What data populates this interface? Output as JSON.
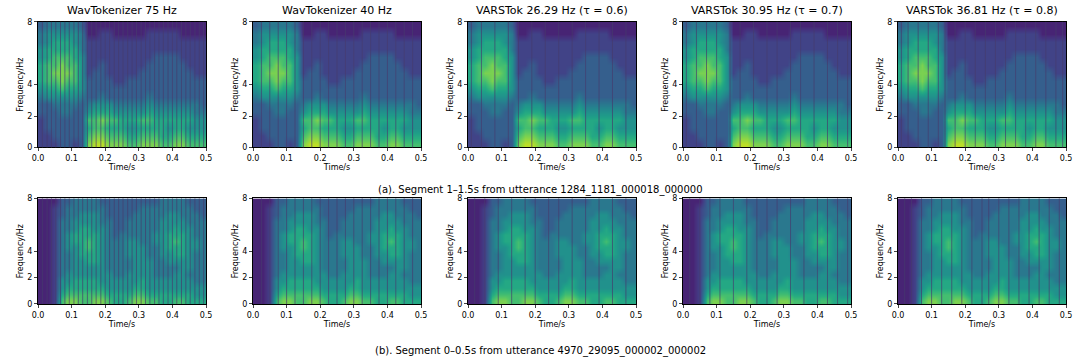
{
  "chart_data": {
    "type": "heatmap",
    "x_label": "Time/s",
    "y_label": "Frequency/Hz",
    "xlim": [
      0,
      0.5
    ],
    "ylim": [
      0,
      8
    ],
    "xticks": [
      {
        "value": 0,
        "label": "0.0"
      },
      0.1,
      0.2,
      0.3,
      0.4,
      0.5
    ],
    "yticks": [
      0,
      2,
      4,
      8
    ],
    "zlim": [
      0,
      10
    ],
    "columns": [
      "WavTokenizer 75 Hz",
      "WavTokenizer 40 Hz",
      "VARSTok 26.29 Hz (τ = 0.6)",
      "VARSTok 30.95 Hz (τ = 0.7)",
      "VARSTok 36.81 Hz (τ = 0.8)"
    ],
    "x": [
      0.01,
      0.03,
      0.05,
      0.07,
      0.09,
      0.11,
      0.13,
      0.15,
      0.17,
      0.19,
      0.21,
      0.23,
      0.25,
      0.27,
      0.29,
      0.31,
      0.33,
      0.35,
      0.37,
      0.39,
      0.41,
      0.43,
      0.45,
      0.47,
      0.49
    ],
    "y": [
      0.25,
      0.75,
      1.25,
      1.75,
      2.25,
      2.75,
      3.25,
      3.75,
      4.25,
      4.75,
      5.25,
      5.75,
      6.25,
      6.75,
      7.25,
      7.75
    ],
    "rows": [
      {
        "caption": "(a). Segment 1–1.5s from utterance 1284_1181_000018_000000",
        "z": [
          [
            2,
            2,
            2,
            3,
            3,
            2,
            3,
            8,
            9,
            9,
            8,
            8,
            8,
            7,
            7,
            8,
            8,
            8,
            7,
            7,
            8,
            8,
            7,
            7,
            7
          ],
          [
            2,
            2,
            3,
            3,
            3,
            3,
            3,
            7,
            8,
            8,
            7,
            7,
            7,
            6,
            6,
            7,
            7,
            7,
            6,
            6,
            7,
            7,
            6,
            6,
            6
          ],
          [
            2,
            3,
            3,
            3,
            3,
            3,
            3,
            6,
            7,
            7,
            6,
            6,
            6,
            5,
            5,
            6,
            6,
            6,
            6,
            5,
            6,
            6,
            5,
            5,
            5
          ],
          [
            2,
            3,
            3,
            3,
            3,
            3,
            3,
            7,
            7,
            8,
            7,
            7,
            6,
            6,
            6,
            7,
            7,
            6,
            6,
            6,
            6,
            6,
            6,
            5,
            5
          ],
          [
            3,
            3,
            3,
            4,
            4,
            3,
            3,
            5,
            6,
            6,
            6,
            5,
            5,
            5,
            5,
            5,
            6,
            5,
            5,
            5,
            5,
            5,
            5,
            4,
            4
          ],
          [
            3,
            3,
            4,
            4,
            4,
            4,
            3,
            4,
            5,
            5,
            5,
            4,
            4,
            4,
            4,
            4,
            5,
            4,
            4,
            4,
            4,
            4,
            4,
            4,
            3
          ],
          [
            4,
            5,
            5,
            5,
            5,
            5,
            4,
            3,
            3,
            4,
            3,
            3,
            3,
            3,
            3,
            3,
            4,
            3,
            3,
            3,
            3,
            3,
            3,
            3,
            3
          ],
          [
            5,
            6,
            6,
            7,
            6,
            6,
            5,
            3,
            3,
            3,
            3,
            3,
            3,
            3,
            3,
            3,
            3,
            3,
            3,
            3,
            3,
            3,
            3,
            3,
            3
          ],
          [
            6,
            7,
            7,
            8,
            7,
            7,
            5,
            3,
            3,
            3,
            3,
            2,
            2,
            3,
            3,
            3,
            3,
            3,
            3,
            3,
            3,
            3,
            3,
            3,
            3
          ],
          [
            6,
            7,
            8,
            8,
            8,
            7,
            5,
            2,
            3,
            3,
            2,
            2,
            2,
            2,
            2,
            3,
            3,
            3,
            3,
            3,
            3,
            3,
            3,
            2,
            2
          ],
          [
            6,
            7,
            7,
            8,
            7,
            7,
            5,
            2,
            2,
            3,
            2,
            2,
            2,
            2,
            2,
            2,
            3,
            3,
            3,
            3,
            3,
            3,
            2,
            2,
            2
          ],
          [
            5,
            6,
            7,
            7,
            7,
            6,
            5,
            2,
            2,
            2,
            2,
            2,
            2,
            2,
            2,
            2,
            2,
            3,
            3,
            3,
            3,
            2,
            2,
            2,
            2
          ],
          [
            5,
            6,
            6,
            6,
            6,
            6,
            4,
            2,
            2,
            2,
            2,
            2,
            2,
            2,
            2,
            2,
            2,
            2,
            2,
            2,
            2,
            2,
            2,
            2,
            2
          ],
          [
            4,
            5,
            6,
            6,
            6,
            5,
            4,
            2,
            2,
            2,
            2,
            2,
            2,
            2,
            2,
            2,
            2,
            2,
            2,
            2,
            2,
            2,
            2,
            2,
            2
          ],
          [
            4,
            5,
            5,
            5,
            5,
            5,
            4,
            1,
            1,
            2,
            2,
            1,
            1,
            1,
            1,
            1,
            2,
            2,
            2,
            2,
            2,
            1,
            1,
            1,
            1
          ],
          [
            3,
            4,
            4,
            4,
            4,
            4,
            3,
            1,
            1,
            1,
            1,
            1,
            1,
            1,
            1,
            1,
            1,
            1,
            1,
            1,
            1,
            1,
            1,
            1,
            1
          ]
        ],
        "boundaries": [
          [
            0.013,
            0.027,
            0.04,
            0.053,
            0.067,
            0.08,
            0.093,
            0.107,
            0.12,
            0.133,
            0.147,
            0.16,
            0.173,
            0.187,
            0.2,
            0.213,
            0.227,
            0.24,
            0.253,
            0.267,
            0.28,
            0.293,
            0.307,
            0.32,
            0.333,
            0.347,
            0.36,
            0.373,
            0.387,
            0.4,
            0.413,
            0.427,
            0.44,
            0.453,
            0.467,
            0.48,
            0.493
          ],
          [
            0.025,
            0.05,
            0.075,
            0.1,
            0.125,
            0.15,
            0.175,
            0.2,
            0.225,
            0.25,
            0.275,
            0.3,
            0.325,
            0.35,
            0.375,
            0.4,
            0.425,
            0.45,
            0.475
          ],
          [
            0.01,
            0.04,
            0.08,
            0.12,
            0.15,
            0.19,
            0.23,
            0.27,
            0.31,
            0.35,
            0.39,
            0.43,
            0.47
          ],
          [
            0.01,
            0.04,
            0.07,
            0.1,
            0.14,
            0.17,
            0.21,
            0.25,
            0.28,
            0.32,
            0.35,
            0.39,
            0.43,
            0.46,
            0.49
          ],
          [
            0.01,
            0.03,
            0.06,
            0.09,
            0.12,
            0.14,
            0.17,
            0.2,
            0.23,
            0.26,
            0.29,
            0.32,
            0.35,
            0.38,
            0.41,
            0.44,
            0.47,
            0.49
          ]
        ]
      },
      {
        "caption": "(b). Segment 0–0.5s from utterance 4970_29095_000002_000002",
        "z": [
          [
            1,
            1,
            2,
            7,
            8,
            8,
            7,
            7,
            8,
            8,
            7,
            6,
            6,
            7,
            8,
            8,
            7,
            7,
            6,
            6,
            7,
            7,
            6,
            6,
            6
          ],
          [
            1,
            1,
            2,
            6,
            7,
            7,
            7,
            7,
            7,
            7,
            6,
            6,
            6,
            6,
            7,
            7,
            6,
            6,
            6,
            6,
            6,
            6,
            6,
            5,
            5
          ],
          [
            1,
            1,
            2,
            5,
            6,
            6,
            6,
            6,
            6,
            6,
            5,
            5,
            5,
            5,
            6,
            6,
            5,
            5,
            5,
            5,
            5,
            5,
            5,
            5,
            5
          ],
          [
            1,
            1,
            2,
            5,
            5,
            6,
            6,
            6,
            6,
            5,
            5,
            5,
            5,
            5,
            5,
            6,
            5,
            5,
            5,
            5,
            5,
            5,
            5,
            4,
            4
          ],
          [
            1,
            1,
            2,
            4,
            5,
            5,
            5,
            5,
            5,
            5,
            5,
            4,
            4,
            5,
            5,
            5,
            5,
            4,
            4,
            4,
            5,
            5,
            4,
            4,
            4
          ],
          [
            1,
            1,
            2,
            4,
            4,
            5,
            5,
            5,
            5,
            5,
            4,
            4,
            4,
            4,
            5,
            5,
            5,
            4,
            4,
            4,
            4,
            5,
            5,
            4,
            4
          ],
          [
            1,
            1,
            2,
            4,
            4,
            5,
            5,
            6,
            6,
            5,
            4,
            4,
            4,
            4,
            5,
            5,
            5,
            4,
            4,
            5,
            5,
            5,
            5,
            4,
            4
          ],
          [
            1,
            1,
            2,
            4,
            4,
            5,
            6,
            6,
            6,
            5,
            4,
            4,
            4,
            5,
            5,
            5,
            4,
            4,
            5,
            5,
            6,
            6,
            5,
            4,
            4
          ],
          [
            1,
            1,
            2,
            4,
            5,
            5,
            6,
            7,
            6,
            5,
            4,
            4,
            4,
            5,
            5,
            5,
            4,
            4,
            5,
            6,
            6,
            6,
            5,
            5,
            4
          ],
          [
            1,
            1,
            2,
            4,
            5,
            6,
            6,
            7,
            6,
            5,
            4,
            4,
            4,
            5,
            5,
            4,
            4,
            5,
            5,
            6,
            7,
            6,
            5,
            5,
            4
          ],
          [
            1,
            1,
            2,
            4,
            5,
            6,
            6,
            6,
            6,
            5,
            4,
            3,
            4,
            4,
            4,
            4,
            4,
            5,
            5,
            6,
            6,
            6,
            5,
            4,
            4
          ],
          [
            1,
            1,
            2,
            4,
            4,
            5,
            6,
            6,
            5,
            5,
            4,
            3,
            3,
            4,
            4,
            4,
            4,
            4,
            5,
            5,
            6,
            5,
            5,
            4,
            4
          ],
          [
            1,
            1,
            2,
            4,
            4,
            5,
            5,
            5,
            5,
            4,
            4,
            3,
            3,
            4,
            4,
            4,
            4,
            4,
            5,
            5,
            5,
            5,
            4,
            4,
            4
          ],
          [
            1,
            1,
            2,
            3,
            4,
            4,
            5,
            5,
            5,
            4,
            3,
            3,
            3,
            3,
            4,
            4,
            4,
            4,
            4,
            5,
            5,
            4,
            4,
            4,
            3
          ],
          [
            1,
            1,
            2,
            3,
            4,
            4,
            4,
            4,
            4,
            4,
            3,
            3,
            3,
            3,
            3,
            4,
            4,
            4,
            4,
            4,
            4,
            4,
            4,
            3,
            3
          ],
          [
            1,
            1,
            1,
            3,
            3,
            4,
            4,
            4,
            4,
            3,
            3,
            3,
            3,
            3,
            3,
            3,
            3,
            3,
            4,
            4,
            4,
            4,
            3,
            3,
            3
          ]
        ],
        "boundaries": [
          [
            0.013,
            0.027,
            0.04,
            0.053,
            0.067,
            0.08,
            0.093,
            0.107,
            0.12,
            0.133,
            0.147,
            0.16,
            0.173,
            0.187,
            0.2,
            0.213,
            0.227,
            0.24,
            0.253,
            0.267,
            0.28,
            0.293,
            0.307,
            0.32,
            0.333,
            0.347,
            0.36,
            0.373,
            0.387,
            0.4,
            0.413,
            0.427,
            0.44,
            0.453,
            0.467,
            0.48,
            0.493
          ],
          [
            0.025,
            0.05,
            0.075,
            0.1,
            0.125,
            0.15,
            0.175,
            0.2,
            0.225,
            0.25,
            0.275,
            0.3,
            0.325,
            0.35,
            0.375,
            0.4,
            0.425,
            0.45,
            0.475
          ],
          [
            0.02,
            0.05,
            0.09,
            0.13,
            0.17,
            0.2,
            0.24,
            0.27,
            0.31,
            0.35,
            0.39,
            0.43,
            0.47
          ],
          [
            0.02,
            0.05,
            0.08,
            0.11,
            0.15,
            0.19,
            0.22,
            0.25,
            0.28,
            0.32,
            0.36,
            0.4,
            0.43,
            0.46,
            0.49
          ],
          [
            0.02,
            0.04,
            0.07,
            0.1,
            0.13,
            0.16,
            0.19,
            0.22,
            0.25,
            0.27,
            0.3,
            0.33,
            0.36,
            0.39,
            0.42,
            0.45,
            0.48
          ]
        ]
      }
    ]
  }
}
